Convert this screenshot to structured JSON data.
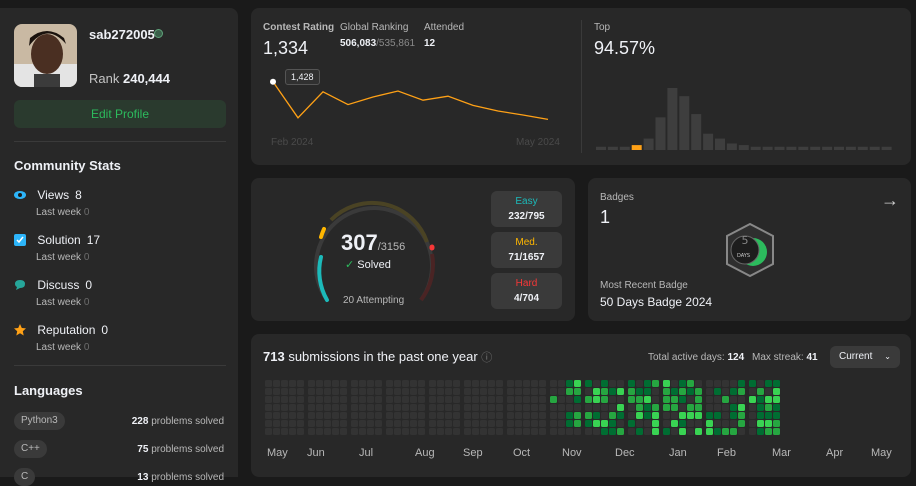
{
  "profile": {
    "username": "sab272005",
    "rank_label": "Rank",
    "rank_value": "240,444",
    "edit_button": "Edit Profile"
  },
  "community": {
    "title": "Community Stats",
    "items": [
      {
        "icon": "eye-icon",
        "label": "Views",
        "value": "8",
        "sub_label": "Last week",
        "sub_value": "0",
        "color": "#2db5fa"
      },
      {
        "icon": "checkbox-icon",
        "label": "Solution",
        "value": "17",
        "sub_label": "Last week",
        "sub_value": "0",
        "color": "#2db5fa"
      },
      {
        "icon": "chat-bubble-icon",
        "label": "Discuss",
        "value": "0",
        "sub_label": "Last week",
        "sub_value": "0",
        "color": "#26a69a"
      },
      {
        "icon": "star-icon",
        "label": "Reputation",
        "value": "0",
        "sub_label": "Last week",
        "sub_value": "0",
        "color": "#ffa116"
      }
    ]
  },
  "languages": {
    "title": "Languages",
    "items": [
      {
        "name": "Python3",
        "count": "228",
        "suffix": "problems solved"
      },
      {
        "name": "C++",
        "count": "75",
        "suffix": "problems solved"
      },
      {
        "name": "C",
        "count": "13",
        "suffix": "problems solved"
      }
    ]
  },
  "contest": {
    "rating_label": "Contest Rating",
    "rating_value": "1,334",
    "global_label": "Global Ranking",
    "global_value": "506,083",
    "global_total": "/535,861",
    "attended_label": "Attended",
    "attended_value": "12",
    "tooltip": "1,428",
    "start_label": "Feb 2024",
    "end_label": "May 2024",
    "top_label": "Top",
    "top_value": "94.57%"
  },
  "chart_data": [
    {
      "type": "line",
      "title": "Contest Rating",
      "x": [
        1,
        2,
        3,
        4,
        5,
        6,
        7,
        8,
        9,
        10,
        11,
        12
      ],
      "y": [
        1428,
        1338,
        1403,
        1371,
        1390,
        1405,
        1382,
        1392,
        1369,
        1355,
        1345,
        1334
      ],
      "xlabel": "",
      "ylabel": "",
      "start_label": "Feb 2024",
      "end_label": "May 2024",
      "ylim": [
        1300,
        1450
      ],
      "color": "#ffa116"
    },
    {
      "type": "bar",
      "title": "Top",
      "values": [
        2,
        2,
        2,
        3,
        7,
        20,
        38,
        33,
        22,
        10,
        7,
        4,
        3,
        2,
        2,
        2,
        2,
        2,
        2,
        2,
        2,
        2,
        2,
        2,
        2
      ],
      "highlight_index": 3,
      "highlight_color": "#ffa116",
      "color": "#3e3e3e"
    }
  ],
  "solved": {
    "value": "307",
    "total": "/3156",
    "solved_label": "Solved",
    "attempting": "20 Attempting",
    "easy_label": "Easy",
    "easy_value": "232/795",
    "easy_color": "#1cbaba",
    "med_label": "Med.",
    "med_value": "71/1657",
    "med_color": "#ffb700",
    "hard_label": "Hard",
    "hard_value": "4/704",
    "hard_color": "#f63737"
  },
  "badges": {
    "title": "Badges",
    "count": "1",
    "recent_label": "Most Recent Badge",
    "recent_name": "50 Days Badge 2024",
    "badge_text": "DAYS"
  },
  "submissions": {
    "count": "713",
    "text": "submissions in the past one year",
    "active_label": "Total active days:",
    "active_value": "124",
    "streak_label": "Max streak:",
    "streak_value": "41",
    "select_value": "Current",
    "months": [
      "May",
      "Jun",
      "Jul",
      "Aug",
      "Sep",
      "Oct",
      "Nov",
      "Dec",
      "Jan",
      "Feb",
      "Mar",
      "Apr",
      "May"
    ]
  }
}
